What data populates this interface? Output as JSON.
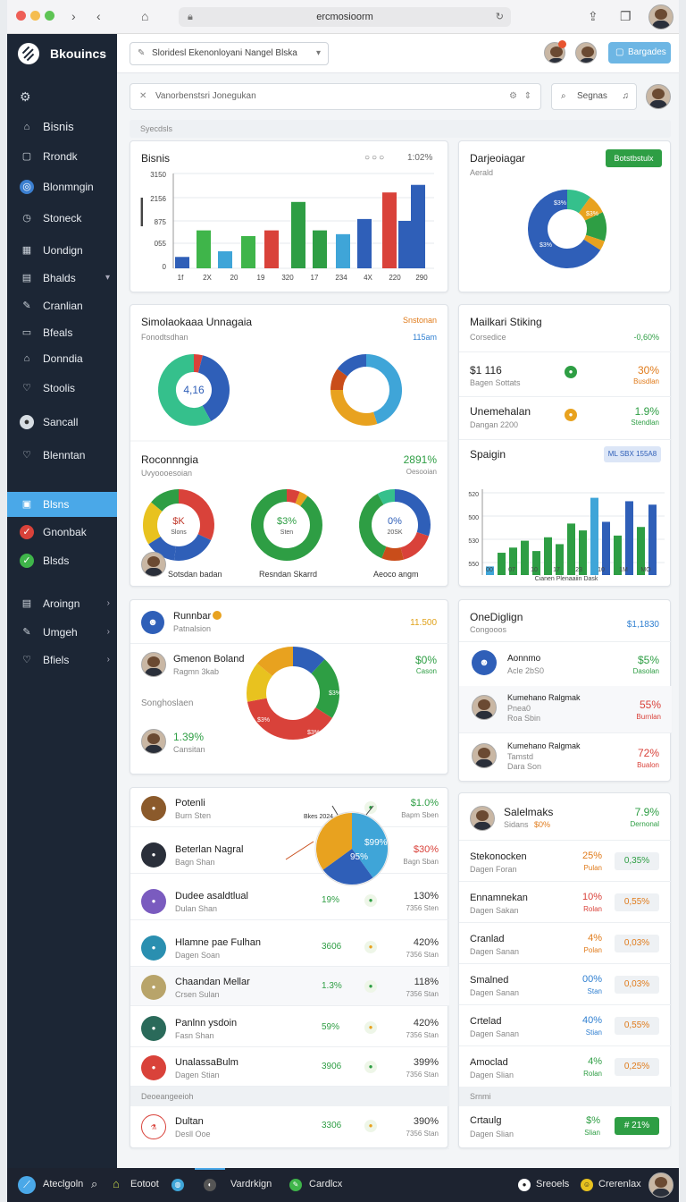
{
  "browser": {
    "url": "ercmosioorm"
  },
  "app": {
    "name": "Bkouincs"
  },
  "sidebar": {
    "items": [
      {
        "label": "Bisnis"
      },
      {
        "label": "Rrondk"
      },
      {
        "label": "Blonmngin"
      },
      {
        "label": "Stoneck"
      },
      {
        "label": "Uondign"
      },
      {
        "label": "Bhalds"
      },
      {
        "label": "Cranlian"
      },
      {
        "label": "Bfeals"
      },
      {
        "label": "Donndia"
      },
      {
        "label": "Stoolis"
      },
      {
        "label": "Sancall"
      },
      {
        "label": "Blenntan"
      },
      {
        "label": "Blsns"
      },
      {
        "label": "Gnonbak"
      },
      {
        "label": "Blsds"
      },
      {
        "label": "Aroingn"
      },
      {
        "label": "Umgeh"
      },
      {
        "label": "Bfiels"
      }
    ]
  },
  "header": {
    "dropdown": "Sloridesl Ekenonloyani Nangel Blska",
    "button": "Bargades"
  },
  "search": {
    "placeholder": "Vanorbenstsri Jonegukan",
    "search_label": "Segnas"
  },
  "section_label": "Syecdsls",
  "card_bisnis": {
    "title": "Bisnis",
    "value": "1:02%",
    "y_ticks": [
      "3150",
      "2156",
      "875",
      "055",
      "0"
    ],
    "x_ticks": [
      "1f",
      "2X",
      "20",
      "19",
      "320",
      "17",
      "234",
      "4X",
      "220",
      "290"
    ]
  },
  "card_donut1": {
    "title": "Darjeoiagar",
    "sub": "Aerald",
    "button": "Botstbstulx",
    "labels": [
      "$3%",
      "$3%",
      "$3%"
    ]
  },
  "card_sim": {
    "title": "Simolaokaaa Unnagaia",
    "sub": "Fonodtsdhan",
    "link": "Snstonan",
    "val": "115am",
    "center": "4,16"
  },
  "card_reco": {
    "title": "Roconnngia",
    "sub": "Uvyoooesoian",
    "value": "2891%",
    "value_sub": "Oesooian",
    "d1": "$K",
    "d1s": "Slons",
    "d2": "$3%",
    "d2s": "Sten",
    "d3": "0%",
    "d3s": "20SK",
    "l1": "Sotsdan badan",
    "l2": "Resndan Skarrd",
    "l3": "Aeoco angm"
  },
  "card_mailk": {
    "title": "Mailkari Stiking",
    "sub": "Corsedice",
    "sub_val": "-0,60%",
    "rows": [
      {
        "name": "$1 116",
        "sub": "Bagen Sottats",
        "pct": "30%",
        "pct_sub": "Busdlan"
      },
      {
        "name": "Unemehalan",
        "sub": "Dangan 2200",
        "pct": "1.9%",
        "pct_sub": "Stendlan"
      }
    ],
    "spaign": "Spaigin",
    "spaign_badge": "ML SBX 155A8",
    "spaign_y": [
      "520",
      "500",
      "530",
      "550"
    ],
    "spaign_x": [
      "00",
      "07",
      "10",
      "17",
      "23",
      "10",
      "1M",
      "MO"
    ],
    "spaign_caption": "Cianen Plenaaiin Dask"
  },
  "card_runnbar": {
    "title": "Runnbar",
    "sub": "Patnalsion",
    "value": "11.500",
    "p1": "Gmenon Boland",
    "p1s": "Ragmn 3kab",
    "p1v": "$0%",
    "p1vs": "Cason",
    "mid": "Songhoslaen",
    "p2v": "1.39%",
    "p2s": "Cansitan",
    "d": [
      "$3%",
      "$3%",
      "$3%",
      "$3%"
    ]
  },
  "card_onedig": {
    "title": "OneDiglign",
    "sub": "Congooos",
    "value": "$1,1830",
    "rows": [
      {
        "name": "Aonnmo",
        "sub": "Acle 2bS0",
        "pct": "$5%",
        "pct_sub": "Dasolan"
      },
      {
        "name": "Kumehano Ralgmak",
        "sub": "Pnea0",
        "sub2": "Roa Sbin",
        "pct": "55%",
        "pct_sub": "Burnlan"
      },
      {
        "name": "Kumehano Ralgmak",
        "sub": "Tamstd",
        "sub2": "Dara Son",
        "pct": "72%",
        "pct_sub": "Bualon"
      }
    ]
  },
  "list_left": {
    "rows": [
      {
        "name": "Potenli",
        "sub": "Burn Sten",
        "p1": "",
        "p2": "$1.0%",
        "p2s": "Bapm Sben"
      },
      {
        "name": "Beterlan Nagral",
        "sub": "Bagn Shan",
        "p1": "",
        "p2": "$30%",
        "p2s": "Bagn Sban"
      },
      {
        "name": "Dudee asaldtlual",
        "sub": "Dulan Shan",
        "p1": "19%",
        "p2": "130%",
        "p2s": "7356 Sten"
      },
      {
        "name": "Hlamne pae Fulhan",
        "sub": "Dagen Soan",
        "p1": "3606",
        "p2": "420%",
        "p2s": "7356 Stan"
      },
      {
        "name": "Chaandan Mellar",
        "sub": "Crsen Sulan",
        "p1": "1.3%",
        "p2": "118%",
        "p2s": "7356 Stan"
      },
      {
        "name": "Panlnn ysdoin",
        "sub": "Fasn Shan",
        "p1": "59%",
        "p2": "420%",
        "p2s": "7356 Stan"
      },
      {
        "name": "UnalassaBulm",
        "sub": "Dagen Stian",
        "p1": "3906",
        "p2": "399%",
        "p2s": "7356 Stan"
      },
      {
        "name": "Dultan",
        "sub": "Desll Ooe",
        "p1": "3306",
        "p2": "390%",
        "p2s": "7356 Stan"
      }
    ],
    "section": "Deoeangeeioh",
    "pie_label": "Bkes 2024",
    "pie_a": "$99%",
    "pie_b": "95%"
  },
  "list_right": {
    "head": {
      "name": "Salelmaks",
      "sub": "Sidans",
      "sub2": "$0%",
      "pct": "7.9%",
      "pct_sub": "Dernonal"
    },
    "rows": [
      {
        "name": "Stekonocken",
        "sub": "Dagen Foran",
        "pct": "25%",
        "pct_sub": "Pulan",
        "btn": "0,35%"
      },
      {
        "name": "Ennamnekan",
        "sub": "Dagen Sakan",
        "pct": "10%",
        "pct_sub": "Rolan",
        "btn": "0,55%"
      },
      {
        "name": "Cranlad",
        "sub": "Dagen Sanan",
        "pct": "4%",
        "pct_sub": "Polan",
        "btn": "0,03%"
      },
      {
        "name": "Smalned",
        "sub": "Dagen Sanan",
        "pct": "00%",
        "pct_sub": "Stan",
        "btn": "0,03%"
      },
      {
        "name": "Crtelad",
        "sub": "Dagen Sanan",
        "pct": "40%",
        "pct_sub": "Stian",
        "btn": "0,55%"
      },
      {
        "name": "Amoclad",
        "sub": "Dagen Slian",
        "pct": "4%",
        "pct_sub": "Rolan",
        "btn": "0,25%"
      }
    ],
    "section": "Srnmi",
    "last": {
      "name": "Crtaulg",
      "sub": "Dagen Slian",
      "pct": "$%",
      "pct_sub": "Slian",
      "btn": "# 21%"
    }
  },
  "taskbar": {
    "search": "Ateclgoln",
    "t1": "Eotoot",
    "t2": "Vardrkign",
    "t3": "Cardlcx",
    "t4": "Sreoels",
    "t5": "Crerenlax"
  },
  "colors": {
    "sidebar": "#1c2635",
    "accent": "#4aa8e8",
    "green": "#2e9e44",
    "red": "#d9423a",
    "blue": "#2f5fb8",
    "orange": "#e8a21f"
  }
}
